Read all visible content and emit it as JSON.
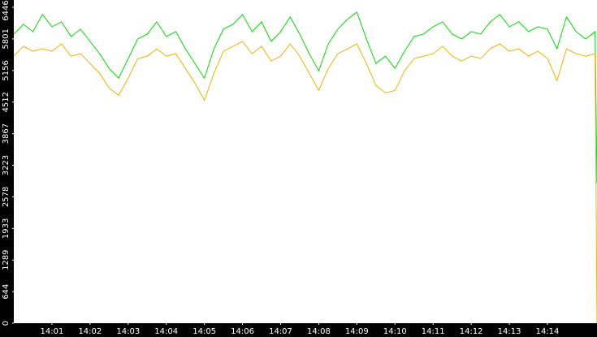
{
  "chart_data": {
    "type": "line",
    "x": [
      0,
      0.25,
      0.5,
      0.75,
      1,
      1.25,
      1.5,
      1.75,
      2,
      2.25,
      2.5,
      2.75,
      3,
      3.25,
      3.5,
      3.75,
      4,
      4.25,
      4.5,
      4.75,
      5,
      5.25,
      5.5,
      5.75,
      6,
      6.25,
      6.5,
      6.75,
      7,
      7.25,
      7.5,
      7.75,
      8,
      8.25,
      8.5,
      8.75,
      9,
      9.25,
      9.5,
      9.75,
      10,
      10.25,
      10.5,
      10.75,
      11,
      11.25,
      11.5,
      11.75,
      12,
      12.25,
      12.5,
      12.75,
      13,
      13.25,
      13.5,
      13.75,
      14,
      14.25,
      14.5,
      14.75,
      15,
      15.25,
      15.3
    ],
    "series": [
      {
        "color": "#00e000",
        "values": [
          5900,
          6100,
          5950,
          6300,
          6050,
          6150,
          5850,
          6000,
          5750,
          5500,
          5200,
          5000,
          5400,
          5800,
          5900,
          6150,
          5850,
          5950,
          5600,
          5300,
          5000,
          5600,
          6000,
          6100,
          6300,
          5950,
          6150,
          5750,
          5950,
          6250,
          5900,
          5500,
          5150,
          5700,
          6000,
          6200,
          6350,
          5800,
          5300,
          5450,
          5200,
          5550,
          5850,
          5900,
          6050,
          6150,
          5900,
          5800,
          5950,
          5900,
          6150,
          6300,
          6050,
          6150,
          5950,
          6050,
          6000,
          5600,
          6250,
          5950,
          5800,
          5950,
          2850
        ]
      },
      {
        "color": "#f0b400",
        "values": [
          5450,
          5650,
          5550,
          5600,
          5550,
          5700,
          5450,
          5500,
          5300,
          5100,
          4800,
          4650,
          5000,
          5400,
          5450,
          5600,
          5450,
          5500,
          5200,
          4900,
          4550,
          5100,
          5550,
          5650,
          5750,
          5500,
          5650,
          5350,
          5450,
          5700,
          5450,
          5100,
          4750,
          5200,
          5500,
          5600,
          5700,
          5300,
          4850,
          4700,
          4750,
          5150,
          5400,
          5450,
          5500,
          5650,
          5450,
          5350,
          5450,
          5400,
          5600,
          5700,
          5550,
          5600,
          5450,
          5550,
          5400,
          4950,
          5600,
          5500,
          5450,
          5500,
          0
        ]
      }
    ],
    "xlim": [
      0,
      15.3
    ],
    "xticks": [
      {
        "value": 1,
        "label": "14:01"
      },
      {
        "value": 2,
        "label": "14:02"
      },
      {
        "value": 3,
        "label": "14:03"
      },
      {
        "value": 4,
        "label": "14:04"
      },
      {
        "value": 5,
        "label": "14:05"
      },
      {
        "value": 6,
        "label": "14:06"
      },
      {
        "value": 7,
        "label": "14:07"
      },
      {
        "value": 8,
        "label": "14:08"
      },
      {
        "value": 9,
        "label": "14:09"
      },
      {
        "value": 10,
        "label": "14:10"
      },
      {
        "value": 11,
        "label": "14:11"
      },
      {
        "value": 12,
        "label": "14:12"
      },
      {
        "value": 13,
        "label": "14:13"
      },
      {
        "value": 14,
        "label": "14:14"
      }
    ],
    "ylim": [
      0,
      6446
    ],
    "yticks": [
      0,
      644,
      1289,
      1933,
      2578,
      3223,
      3867,
      4512,
      5156,
      5801,
      6446
    ]
  }
}
